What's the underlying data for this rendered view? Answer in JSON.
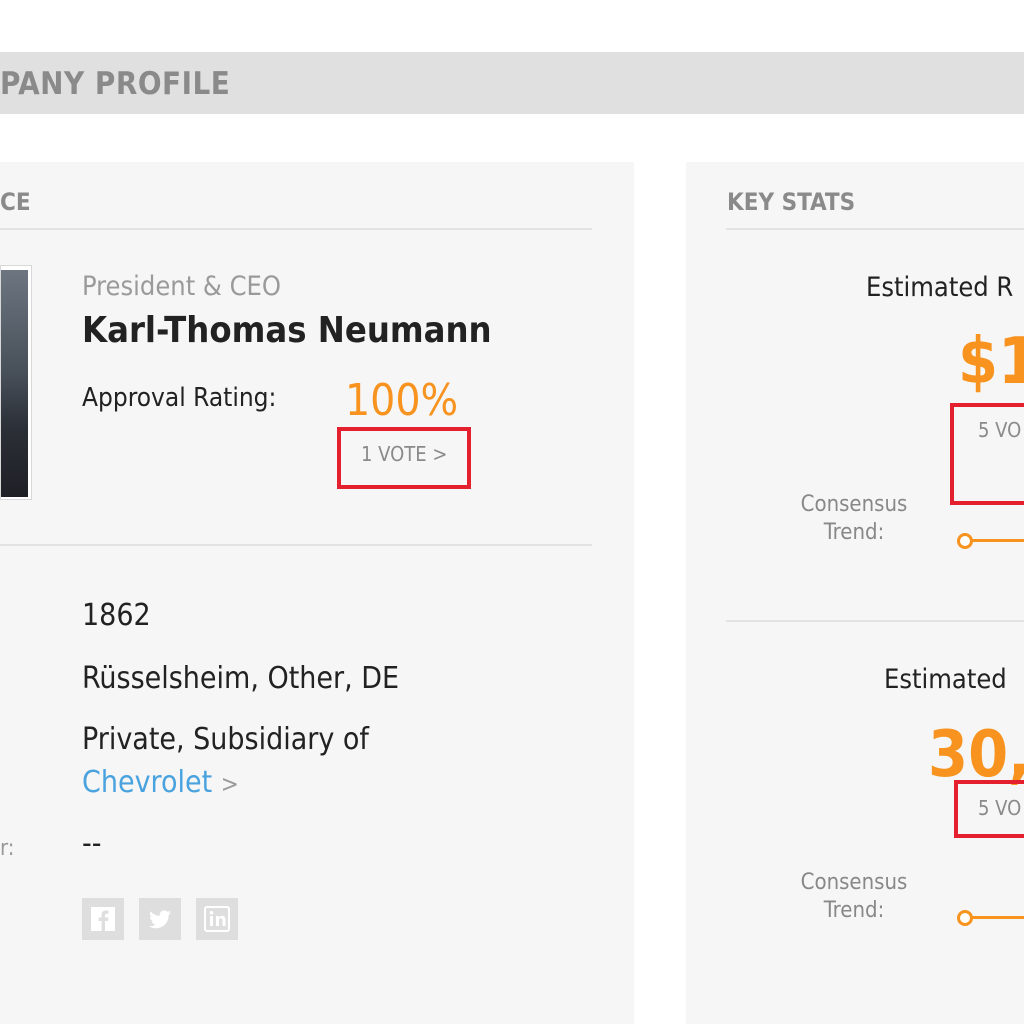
{
  "banner": {
    "title": "PANY PROFILE"
  },
  "left": {
    "section_title": "CE",
    "ceo": {
      "role": "President & CEO",
      "name": "Karl-Thomas Neumann",
      "approval_label": "Approval Rating:",
      "approval_value": "100%",
      "votes": "1 VOTE >"
    },
    "info": {
      "founded": "1862",
      "location": "Rüsselsheim, Other, DE",
      "ownership": "Private, Subsidiary of",
      "parent": "Chevrolet",
      "parent_arrow": ">",
      "other": "--",
      "other_label_fragment": "r:"
    },
    "social": [
      "facebook-icon",
      "twitter-icon",
      "linkedin-icon"
    ]
  },
  "right": {
    "section_title": "KEY STATS",
    "stat1": {
      "label": "Estimated R",
      "value": "$1",
      "votes": "5 VO",
      "consensus": "Consensus",
      "trend": "Trend:"
    },
    "stat2": {
      "label": "Estimated",
      "value": "30,",
      "votes": "5 VO",
      "consensus": "Consensus",
      "trend": "Trend:"
    }
  },
  "colors": {
    "accent": "#f7931e",
    "highlight": "#e4202e",
    "link": "#4aa3df"
  }
}
